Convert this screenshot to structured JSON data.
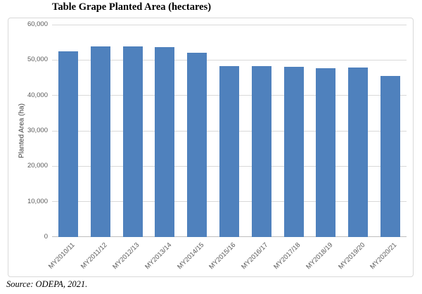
{
  "chart_data": {
    "type": "bar",
    "title": "Table Grape Planted Area (hectares)",
    "ylabel": "Planted Area (ha)",
    "xlabel": "",
    "categories": [
      "MY2010/11",
      "MY2011/12",
      "MY2012/13",
      "MY2013/14",
      "MY2014/15",
      "MY2015/16",
      "MY2016/17",
      "MY2017/18",
      "MY2018/19",
      "MY2019/20",
      "MY2020/21"
    ],
    "values": [
      52400,
      53800,
      53800,
      53600,
      52100,
      48300,
      48300,
      48000,
      47700,
      47800,
      45500
    ],
    "ylim": [
      0,
      60000
    ],
    "ytick_values": [
      0,
      10000,
      20000,
      30000,
      40000,
      50000,
      60000
    ],
    "ytick_labels": [
      "0",
      "10,000",
      "20,000",
      "30,000",
      "40,000",
      "50,000",
      "60,000"
    ],
    "grid": true,
    "legend_position": "none",
    "colors": {
      "bar": "#4F81BD",
      "gridline": "#D9D9D9",
      "axis_line": "#BFBFBF",
      "tick_label": "#595959",
      "frame_border": "#D9D9D9",
      "title": "#000000"
    }
  },
  "source_note": "Source: ODEPA, 2021."
}
